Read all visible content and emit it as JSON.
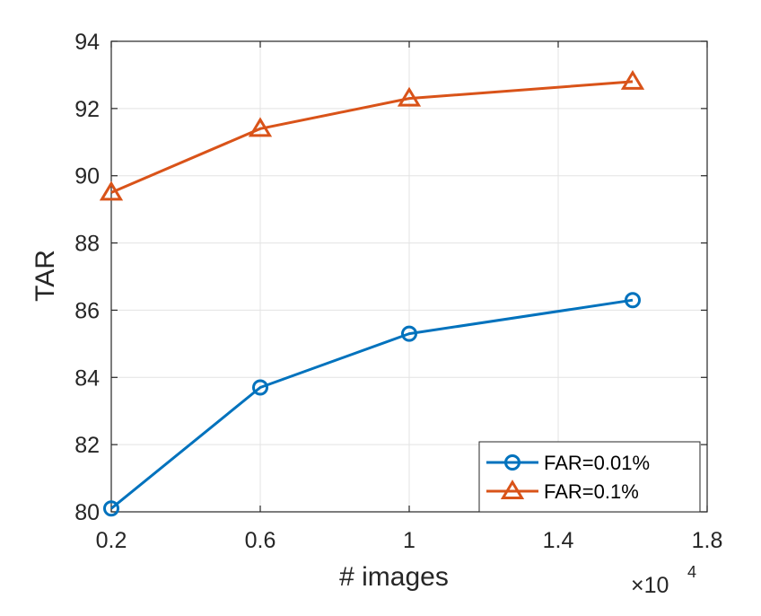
{
  "chart_data": {
    "type": "line",
    "xlabel": "# images",
    "ylabel": "TAR",
    "x_multiplier_label": {
      "base": "×10",
      "exponent": "4"
    },
    "xlim": [
      0.2,
      1.8
    ],
    "ylim": [
      80,
      94
    ],
    "x_ticks": [
      0.2,
      0.6,
      1.0,
      1.4,
      1.8
    ],
    "x_tick_labels": [
      "0.2",
      "0.6",
      "1",
      "1.4",
      "1.8"
    ],
    "y_ticks": [
      80,
      82,
      84,
      86,
      88,
      90,
      92,
      94
    ],
    "y_tick_labels": [
      "80",
      "82",
      "84",
      "86",
      "88",
      "90",
      "92",
      "94"
    ],
    "grid": true,
    "legend_position": "bottom-right",
    "series": [
      {
        "name": "FAR=0.01%",
        "color": "#0072BD",
        "marker": "circle",
        "x": [
          0.2,
          0.6,
          1.0,
          1.6
        ],
        "y": [
          80.1,
          83.7,
          85.3,
          86.3
        ]
      },
      {
        "name": "FAR=0.1%",
        "color": "#D95319",
        "marker": "triangle",
        "x": [
          0.2,
          0.6,
          1.0,
          1.6
        ],
        "y": [
          89.5,
          91.4,
          92.3,
          92.8
        ]
      }
    ]
  }
}
